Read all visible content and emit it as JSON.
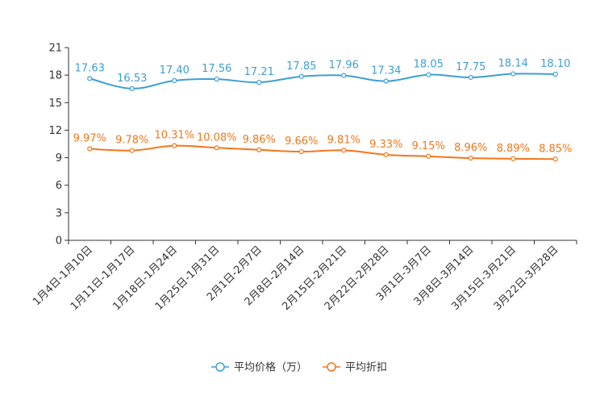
{
  "chart_data": {
    "type": "line",
    "categories": [
      "1月4日-1月10日",
      "1月11日-1月17日",
      "1月18日-1月24日",
      "1月25日-1月31日",
      "2月1日-2月7日",
      "2月8日-2月14日",
      "2月15日-2月21日",
      "2月22日-2月28日",
      "3月1日-3月7日",
      "3月8日-3月14日",
      "3月15日-3月21日",
      "3月22日-3月28日"
    ],
    "ylim": [
      0,
      21
    ],
    "yticks": [
      "0",
      "3",
      "6",
      "9",
      "12",
      "15",
      "18",
      "21"
    ],
    "series": [
      {
        "name": "平均价格（万）",
        "color": "#3d9fd2",
        "values": [
          17.63,
          16.53,
          17.4,
          17.56,
          17.21,
          17.85,
          17.96,
          17.34,
          18.05,
          17.75,
          18.14,
          18.1
        ],
        "labels": [
          "17.63",
          "16.53",
          "17.40",
          "17.56",
          "17.21",
          "17.85",
          "17.96",
          "17.34",
          "18.05",
          "17.75",
          "18.14",
          "18.10"
        ]
      },
      {
        "name": "平均折扣",
        "color": "#f5761a",
        "values": [
          9.97,
          9.78,
          10.31,
          10.08,
          9.86,
          9.66,
          9.81,
          9.33,
          9.15,
          8.96,
          8.89,
          8.85
        ],
        "labels": [
          "9.97%",
          "9.78%",
          "10.31%",
          "10.08%",
          "9.86%",
          "9.66%",
          "9.81%",
          "9.33%",
          "9.15%",
          "8.96%",
          "8.89%",
          "8.85%"
        ]
      }
    ],
    "legend": "bottom",
    "title": "",
    "xlabel": "",
    "ylabel": ""
  }
}
